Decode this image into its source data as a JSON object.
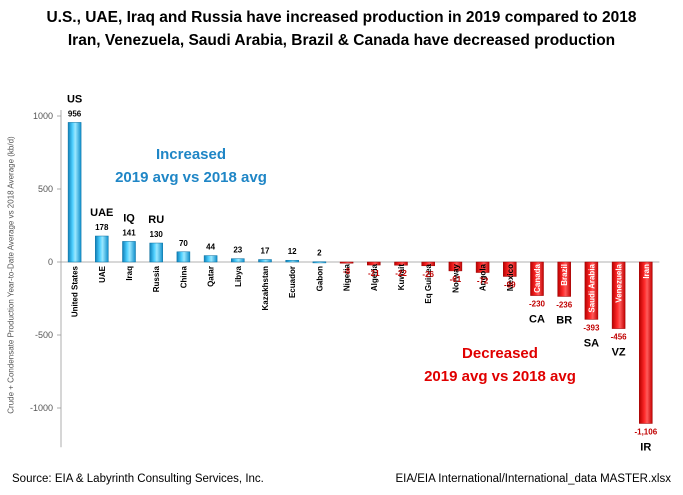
{
  "header": {
    "title_line1": "U.S., UAE, Iraq and Russia have increased production in 2019 compared to 2018",
    "title_line2": "Iran, Venezuela, Saudi Arabia, Brazil & Canada have decreased production"
  },
  "annotations": {
    "increased_line1": "Increased",
    "increased_line2": "2019 avg vs 2018 avg",
    "decreased_line1": "Decreased",
    "decreased_line2": "2019 avg vs 2018 avg"
  },
  "footer": {
    "source": "Source: EIA & Labyrinth Consulting Services, Inc.",
    "file": "EIA/EIA International/International_data MASTER.xlsx"
  },
  "colors": {
    "positive": "#1aa7e0",
    "negative": "#e60000",
    "label_negative": "#c00000"
  },
  "chart_data": {
    "type": "bar",
    "title": "U.S., UAE, Iraq and Russia have increased production in 2019 compared to 2018",
    "ylabel": "Crude + Condensate Production  Year-to-Date Average vs 2018 Average (kb/d)",
    "xlabel": "",
    "ylim": [
      -1200,
      1000
    ],
    "yticks": [
      1000,
      500,
      0,
      -500,
      -1000
    ],
    "grid": false,
    "categories": [
      "United States",
      "UAE",
      "Iraq",
      "Russia",
      "China",
      "Qatar",
      "Libya",
      "Kazakhstan",
      "Ecuador",
      "Gabon",
      "Nigeria",
      "Algeria",
      "Kuwait",
      "Eq Guinea",
      "Norway",
      "Angola",
      "Mexico",
      "Canada",
      "Brazil",
      "Saudi Arabia",
      "Venezuela",
      "Iran"
    ],
    "values": [
      956,
      178,
      141,
      130,
      70,
      44,
      23,
      17,
      12,
      2,
      -8,
      -21,
      -22,
      -26,
      -61,
      -72,
      -99,
      -230,
      -236,
      -393,
      -456,
      -1106
    ],
    "value_labels": [
      "956",
      "178",
      "141",
      "130",
      "70",
      "44",
      "23",
      "17",
      "12",
      "2",
      "-8",
      "-21",
      "-22",
      "-26",
      "-61",
      "-72",
      "-99",
      "-230",
      "-236",
      "-393",
      "-456",
      "-1,106"
    ],
    "country_codes": [
      {
        "index": 0,
        "code": "US"
      },
      {
        "index": 1,
        "code": "UAE"
      },
      {
        "index": 2,
        "code": "IQ"
      },
      {
        "index": 3,
        "code": "RU"
      },
      {
        "index": 17,
        "code": "CA"
      },
      {
        "index": 18,
        "code": "BR"
      },
      {
        "index": 19,
        "code": "SA"
      },
      {
        "index": 20,
        "code": "VZ"
      },
      {
        "index": 21,
        "code": "IR"
      }
    ]
  }
}
